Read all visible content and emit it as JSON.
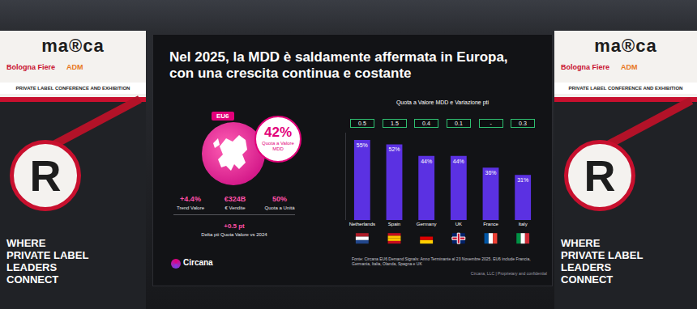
{
  "slide": {
    "title": [
      "Nel 2025, la MDD è saldamente affermata in Europa,",
      "con una crescita continua e costante"
    ],
    "region": "EU6",
    "headline": {
      "value": "42%",
      "label": "Quota a Valore MDD"
    },
    "kpis": [
      {
        "value": "+4.4%",
        "label": "Trend Valore"
      },
      {
        "value": "€324B",
        "label": "€ Vendite"
      },
      {
        "value": "50%",
        "label": "Quota a Unità"
      }
    ],
    "delta": {
      "value": "+0.5 pt",
      "label": "Delta pti Quota Valore vs 2024"
    },
    "source": "Fonte: Circana EU6 Demand Signals: Anno Terminante al 23 Novembre 2025. EU6 include Francia, Germania, Italia, Olanda, Spagna e UK",
    "confidential": "Circana, LLC | Proprietary and confidential",
    "logo": "Circana"
  },
  "banner": {
    "logo": "ma®ca",
    "partners": [
      "Bologna Fiere",
      "ADM"
    ],
    "subtitle": "PRIVATE LABEL CONFERENCE AND EXHIBITION",
    "symbol": "R",
    "tagline": [
      "WHERE",
      "PRIVATE LABEL",
      "LEADERS",
      "CONNECT"
    ]
  },
  "chart_data": {
    "type": "bar",
    "title": "Quota a Valore MDD e Variazione pti",
    "categories": [
      "Netherlands",
      "Spain",
      "Germany",
      "UK",
      "France",
      "Italy"
    ],
    "values": [
      55,
      52,
      44,
      44,
      36,
      31
    ],
    "value_labels": [
      "55%",
      "52%",
      "44%",
      "44%",
      "36%",
      "31%"
    ],
    "color": "#5b31e2",
    "data_labels": true,
    "ylim": [
      0,
      60
    ],
    "yticks": [],
    "tick_labels": "x",
    "variation": {
      "values": [
        0.5,
        1.5,
        0.4,
        0.1,
        null,
        0.3
      ],
      "value_labels": [
        "0.5",
        "1.5",
        "0.4",
        "0.1",
        "-",
        "0.3"
      ]
    }
  }
}
